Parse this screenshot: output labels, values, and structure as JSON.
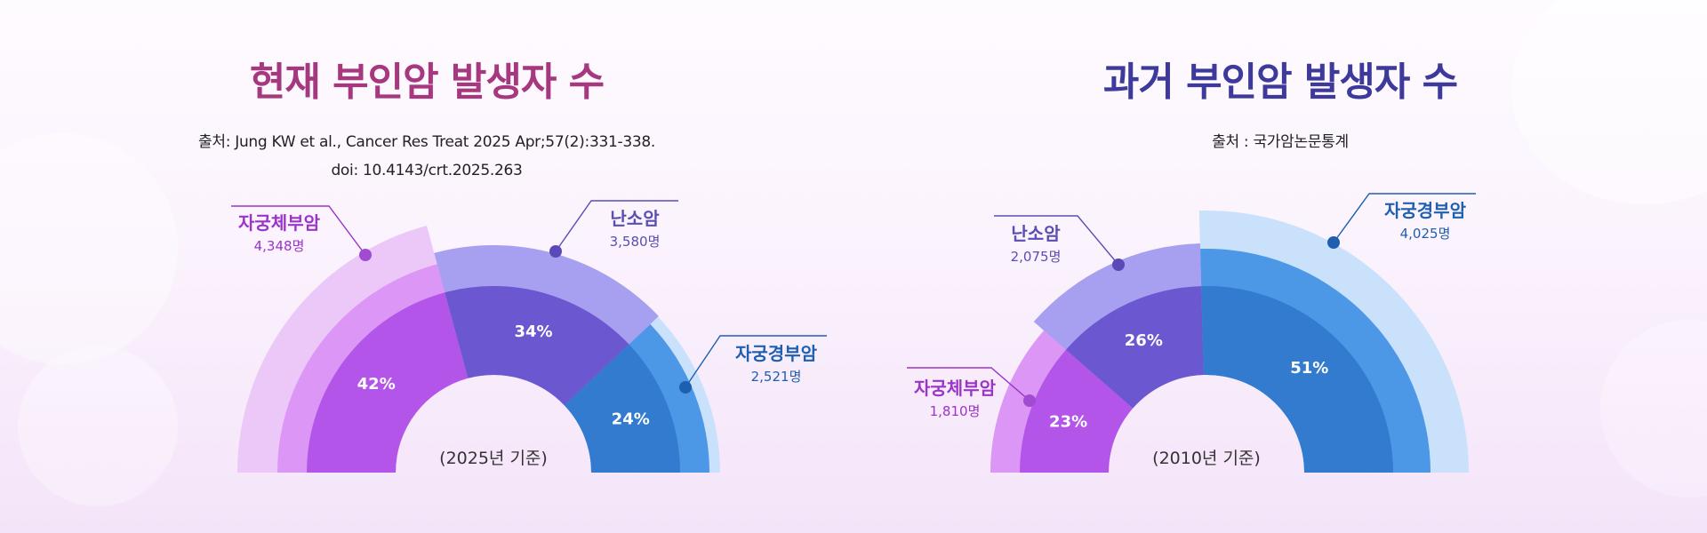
{
  "colors": {
    "title_current": "#a5387e",
    "title_past": "#3d3a9c",
    "uterine_body": "#9a35c8",
    "ovarian": "#5a4fb0",
    "cervical": "#1f5fb0"
  },
  "panels": [
    {
      "title": "현재 부인암 발생자 수",
      "source_lines": [
        "출처: Jung KW et al., Cancer Res Treat 2025 Apr;57(2):331-338.",
        "doi: 10.4143/crt.2025.263"
      ]
    },
    {
      "title": "과거 부인암 발생자 수",
      "source_lines": [
        "출처 : 국가암논문통계"
      ]
    }
  ],
  "chart_data": [
    {
      "type": "pie",
      "subtype": "semi-donut",
      "title": "현재 부인암 발생자 수",
      "center_label": "(2025년 기준)",
      "categories": [
        "자궁체부암",
        "난소암",
        "자궁경부암"
      ],
      "values": [
        4348,
        3580,
        2521
      ],
      "value_labels": [
        "4,348명",
        "3,580명",
        "2,521명"
      ],
      "percent_labels": [
        "42%",
        "34%",
        "24%"
      ]
    },
    {
      "type": "pie",
      "subtype": "semi-donut",
      "title": "과거 부인암 발생자 수",
      "center_label": "(2010년 기준)",
      "categories": [
        "자궁체부암",
        "난소암",
        "자궁경부암"
      ],
      "values": [
        1810,
        2075,
        4025
      ],
      "value_labels": [
        "1,810명",
        "2,075명",
        "4,025명"
      ],
      "percent_labels": [
        "23%",
        "26%",
        "51%"
      ]
    }
  ]
}
